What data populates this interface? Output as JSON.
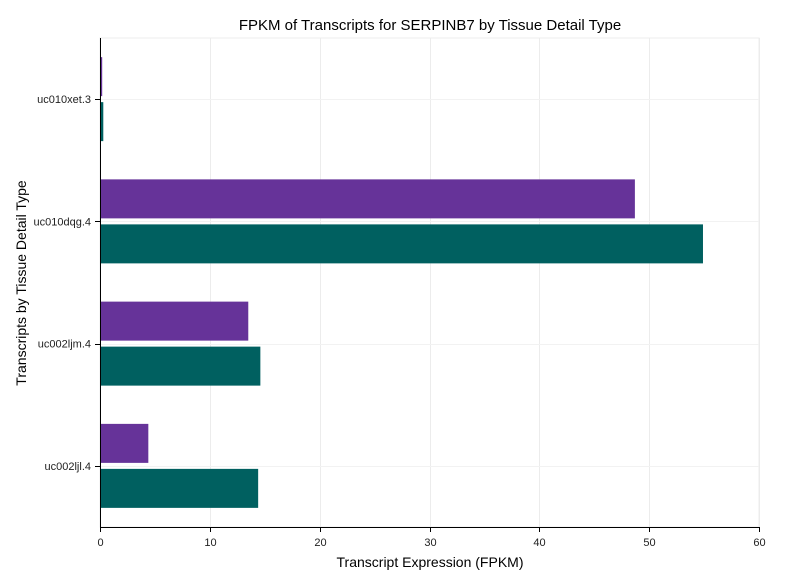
{
  "chart_data": {
    "type": "bar",
    "orientation": "horizontal",
    "title": "FPKM of Transcripts for SERPINB7 by Tissue Detail Type",
    "xlabel": "Transcript Expression (FPKM)",
    "ylabel": "Transcripts by Tissue Detail Type",
    "categories": [
      "uc010xet.3",
      "uc010dqg.4",
      "uc002ljm.4",
      "uc002ljl.4"
    ],
    "series": [
      {
        "color": "#663399",
        "values": [
          0.2,
          48.7,
          13.5,
          4.4
        ]
      },
      {
        "color": "#006060",
        "values": [
          0.3,
          54.9,
          14.6,
          14.4
        ]
      }
    ],
    "xlim": [
      0,
      60
    ],
    "xticks": [
      0,
      10,
      20,
      30,
      40,
      50,
      60
    ],
    "grid": true,
    "legend": "none"
  }
}
